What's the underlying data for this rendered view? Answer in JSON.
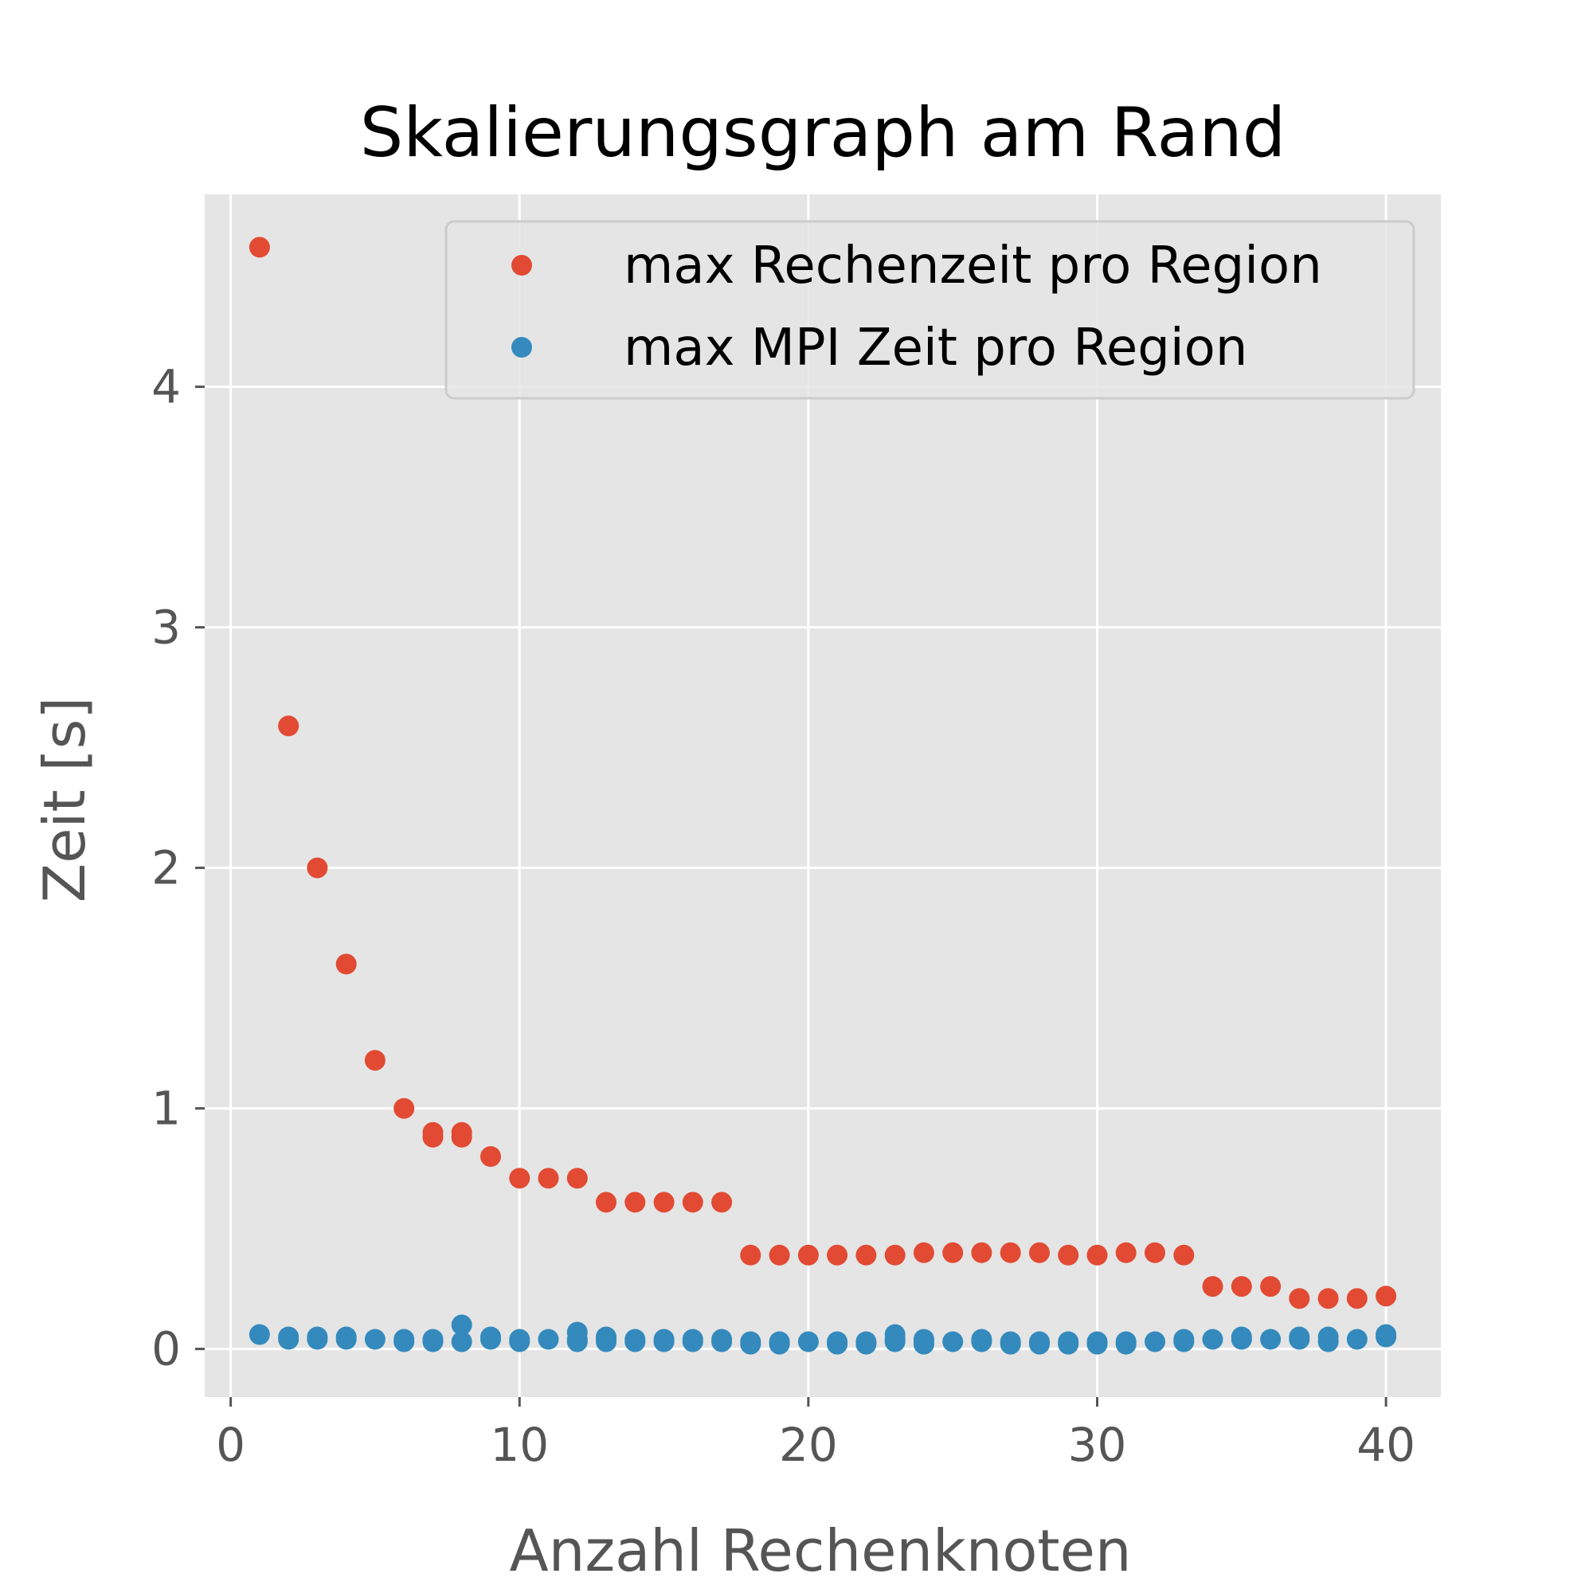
{
  "chart_data": {
    "type": "scatter",
    "title": "Skalierungsgraph am Rand",
    "xlabel": "Anzahl Rechenknoten",
    "ylabel": "Zeit [s]",
    "xlim": [
      -0.9,
      41.9
    ],
    "ylim": [
      -0.2,
      4.8
    ],
    "xticks": [
      0,
      10,
      20,
      30,
      40
    ],
    "yticks": [
      0,
      1,
      2,
      3,
      4
    ],
    "grid": true,
    "legend_position": "top-right",
    "style": {
      "plot_background": "#e5e5e5",
      "grid_color": "#ffffff",
      "tick_label_color": "#555555",
      "title_color": "#000000"
    },
    "series": [
      {
        "name": "max Rechenzeit pro Region",
        "color": "#e24a33",
        "points": [
          [
            1,
            4.58
          ],
          [
            2,
            2.59
          ],
          [
            3,
            2.0
          ],
          [
            4,
            1.6
          ],
          [
            5,
            1.2
          ],
          [
            6,
            1.0
          ],
          [
            7,
            0.9
          ],
          [
            7,
            0.88
          ],
          [
            8,
            0.9
          ],
          [
            8,
            0.88
          ],
          [
            9,
            0.8
          ],
          [
            10,
            0.71
          ],
          [
            11,
            0.71
          ],
          [
            12,
            0.71
          ],
          [
            13,
            0.61
          ],
          [
            14,
            0.61
          ],
          [
            15,
            0.61
          ],
          [
            16,
            0.61
          ],
          [
            17,
            0.61
          ],
          [
            18,
            0.39
          ],
          [
            19,
            0.39
          ],
          [
            20,
            0.39
          ],
          [
            21,
            0.39
          ],
          [
            22,
            0.39
          ],
          [
            23,
            0.39
          ],
          [
            24,
            0.4
          ],
          [
            25,
            0.4
          ],
          [
            26,
            0.4
          ],
          [
            27,
            0.4
          ],
          [
            28,
            0.4
          ],
          [
            29,
            0.39
          ],
          [
            30,
            0.39
          ],
          [
            31,
            0.4
          ],
          [
            32,
            0.4
          ],
          [
            33,
            0.39
          ],
          [
            34,
            0.26
          ],
          [
            35,
            0.26
          ],
          [
            36,
            0.26
          ],
          [
            37,
            0.21
          ],
          [
            38,
            0.21
          ],
          [
            39,
            0.21
          ],
          [
            40,
            0.22
          ]
        ]
      },
      {
        "name": "max MPI Zeit pro Region",
        "color": "#348abd",
        "points": [
          [
            1,
            0.06
          ],
          [
            2,
            0.04
          ],
          [
            2,
            0.05
          ],
          [
            3,
            0.04
          ],
          [
            3,
            0.05
          ],
          [
            4,
            0.04
          ],
          [
            4,
            0.05
          ],
          [
            5,
            0.04
          ],
          [
            6,
            0.03
          ],
          [
            6,
            0.04
          ],
          [
            7,
            0.03
          ],
          [
            7,
            0.04
          ],
          [
            8,
            0.1
          ],
          [
            8,
            0.03
          ],
          [
            9,
            0.04
          ],
          [
            9,
            0.05
          ],
          [
            10,
            0.03
          ],
          [
            10,
            0.04
          ],
          [
            11,
            0.04
          ],
          [
            12,
            0.07
          ],
          [
            12,
            0.04
          ],
          [
            12,
            0.03
          ],
          [
            13,
            0.05
          ],
          [
            13,
            0.04
          ],
          [
            13,
            0.03
          ],
          [
            14,
            0.04
          ],
          [
            14,
            0.03
          ],
          [
            15,
            0.03
          ],
          [
            15,
            0.04
          ],
          [
            16,
            0.03
          ],
          [
            16,
            0.04
          ],
          [
            17,
            0.04
          ],
          [
            17,
            0.03
          ],
          [
            18,
            0.03
          ],
          [
            18,
            0.02
          ],
          [
            19,
            0.03
          ],
          [
            19,
            0.02
          ],
          [
            20,
            0.03
          ],
          [
            21,
            0.03
          ],
          [
            21,
            0.02
          ],
          [
            22,
            0.03
          ],
          [
            22,
            0.02
          ],
          [
            23,
            0.06
          ],
          [
            23,
            0.03
          ],
          [
            23,
            0.04
          ],
          [
            24,
            0.04
          ],
          [
            24,
            0.03
          ],
          [
            24,
            0.02
          ],
          [
            25,
            0.03
          ],
          [
            26,
            0.04
          ],
          [
            26,
            0.03
          ],
          [
            27,
            0.03
          ],
          [
            27,
            0.02
          ],
          [
            28,
            0.03
          ],
          [
            28,
            0.02
          ],
          [
            29,
            0.03
          ],
          [
            29,
            0.02
          ],
          [
            30,
            0.03
          ],
          [
            30,
            0.02
          ],
          [
            31,
            0.03
          ],
          [
            31,
            0.02
          ],
          [
            32,
            0.03
          ],
          [
            33,
            0.04
          ],
          [
            33,
            0.03
          ],
          [
            34,
            0.04
          ],
          [
            35,
            0.04
          ],
          [
            35,
            0.05
          ],
          [
            36,
            0.04
          ],
          [
            37,
            0.05
          ],
          [
            37,
            0.04
          ],
          [
            38,
            0.05
          ],
          [
            38,
            0.03
          ],
          [
            39,
            0.04
          ],
          [
            40,
            0.05
          ],
          [
            40,
            0.06
          ]
        ]
      }
    ]
  }
}
